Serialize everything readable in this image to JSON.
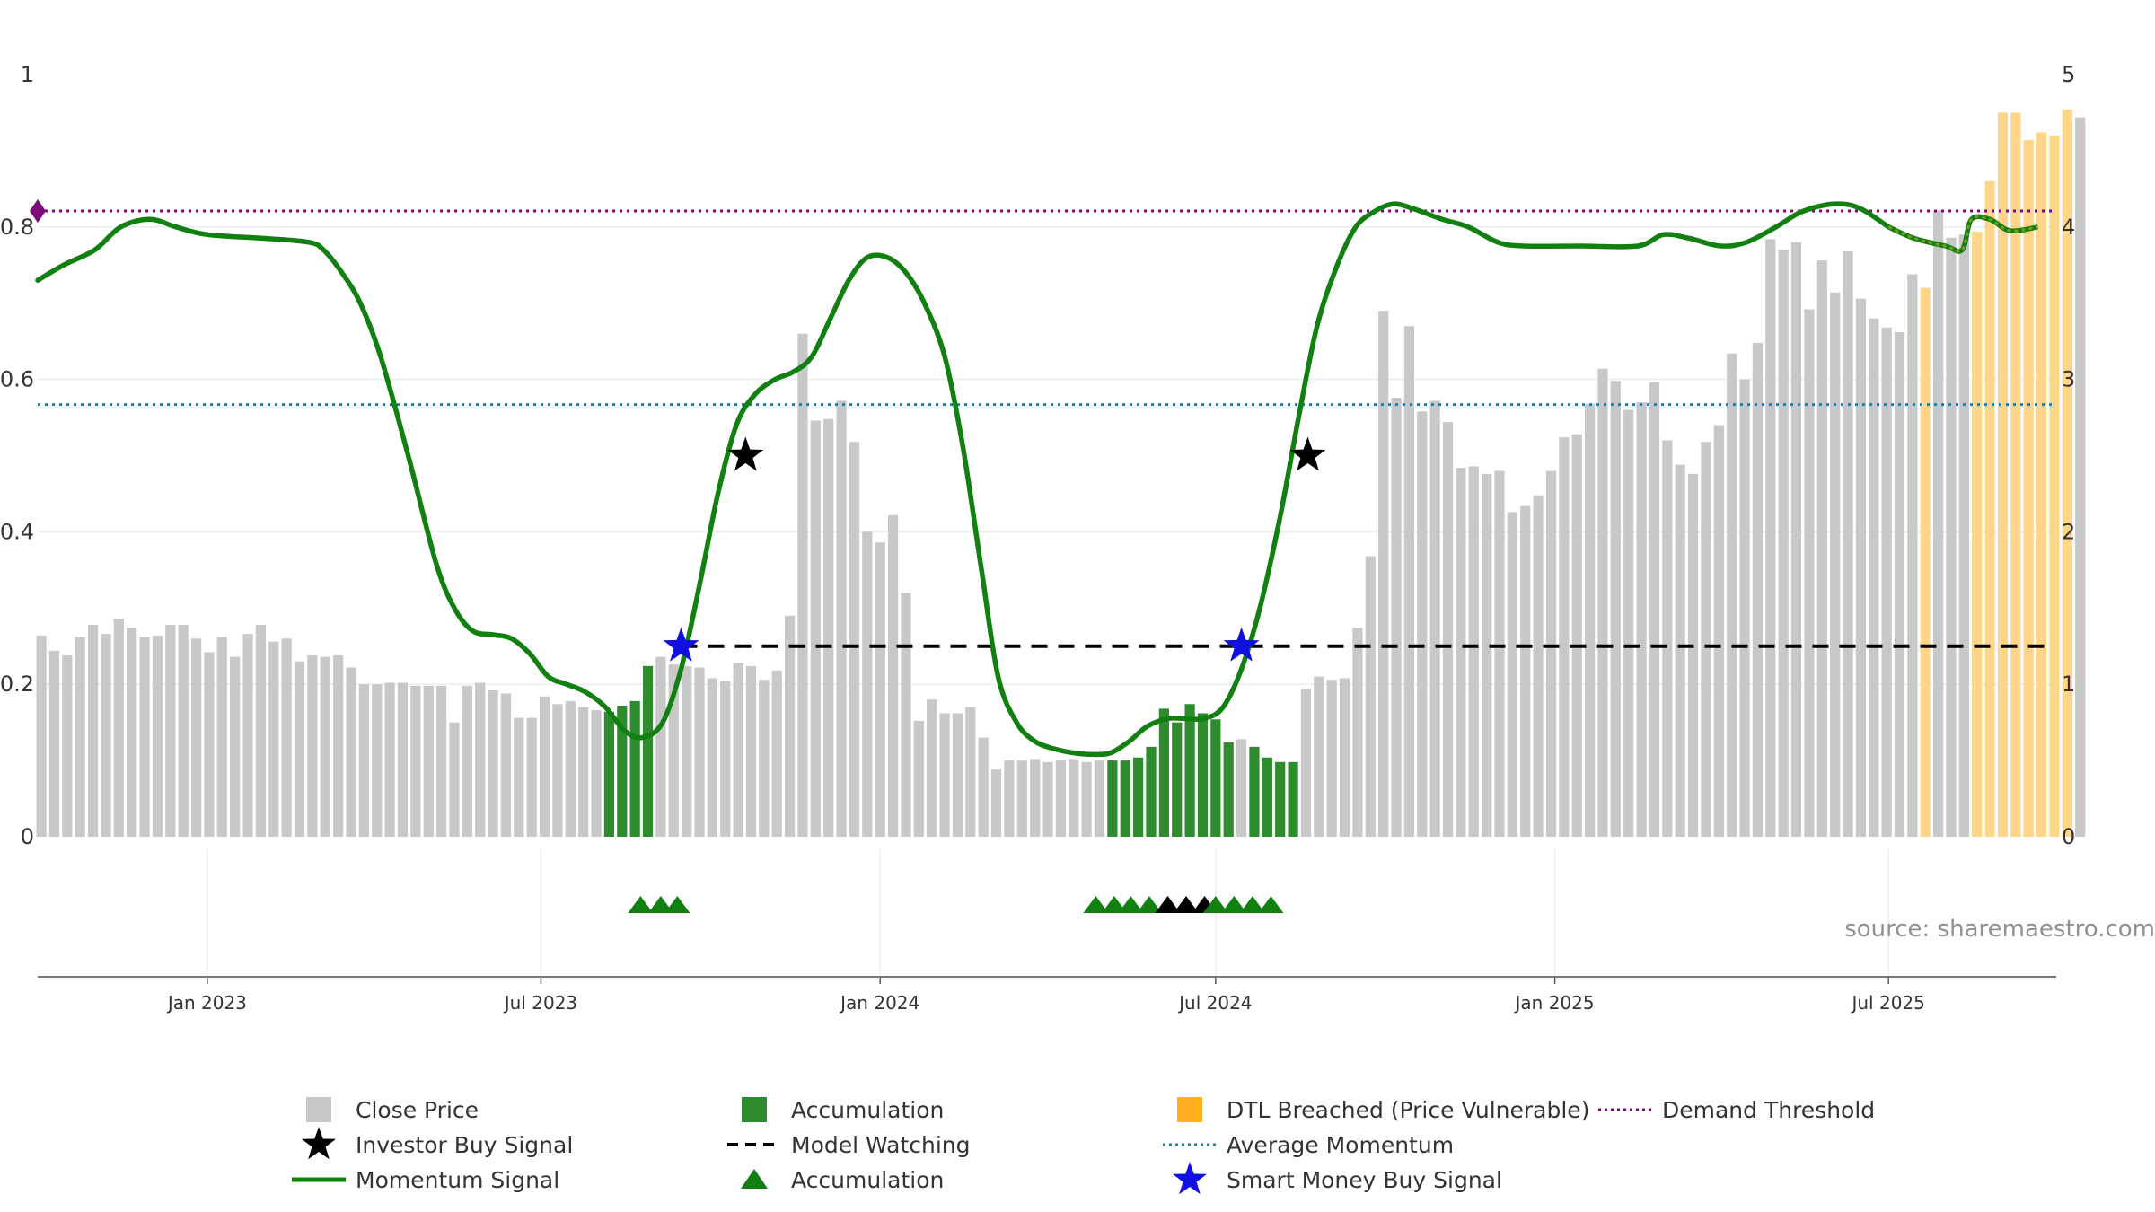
{
  "chart_data": {
    "type": "bar",
    "title": "",
    "source": "source: sharemaestro.com",
    "x_axis": {
      "start": "2022-10-01",
      "end": "2025-09-30",
      "ticks": [
        {
          "date": "2023-01-01",
          "label": "Jan 2023"
        },
        {
          "date": "2023-07-01",
          "label": "Jul 2023"
        },
        {
          "date": "2024-01-01",
          "label": "Jan 2024"
        },
        {
          "date": "2024-07-01",
          "label": "Jul 2024"
        },
        {
          "date": "2025-01-01",
          "label": "Jan 2025"
        },
        {
          "date": "2025-07-01",
          "label": "Jul 2025"
        }
      ]
    },
    "y_left": {
      "min": 0,
      "max": 1,
      "ticks": [
        0,
        0.2,
        0.4,
        0.6,
        0.8,
        1
      ]
    },
    "y_right": {
      "min": 0,
      "max": 5,
      "ticks": [
        0,
        1,
        2,
        3,
        4,
        5
      ]
    },
    "close_price": {
      "start": "2022-10-03",
      "interval_days": 7,
      "values": [
        1.32,
        1.22,
        1.19,
        1.31,
        1.39,
        1.33,
        1.43,
        1.37,
        1.31,
        1.32,
        1.39,
        1.39,
        1.3,
        1.21,
        1.31,
        1.18,
        1.33,
        1.39,
        1.28,
        1.3,
        1.15,
        1.19,
        1.18,
        1.19,
        1.11,
        1.0,
        1.0,
        1.01,
        1.01,
        0.99,
        0.99,
        0.99,
        0.75,
        0.99,
        1.01,
        0.96,
        0.94,
        0.78,
        0.78,
        0.92,
        0.87,
        0.89,
        0.85,
        0.83,
        0.82,
        0.86,
        0.89,
        1.12,
        1.18,
        1.13,
        1.12,
        1.11,
        1.04,
        1.02,
        1.14,
        1.12,
        1.03,
        1.09,
        1.45,
        3.3,
        2.73,
        2.74,
        2.86,
        2.59,
        2.0,
        1.93,
        2.11,
        1.6,
        0.76,
        0.9,
        0.81,
        0.81,
        0.85,
        0.65,
        0.44,
        0.5,
        0.5,
        0.51,
        0.49,
        0.5,
        0.51,
        0.49,
        0.5,
        0.5,
        0.5,
        0.52,
        0.59,
        0.84,
        0.75,
        0.87,
        0.81,
        0.77,
        0.62,
        0.64,
        0.59,
        0.52,
        0.49,
        0.49,
        0.97,
        1.05,
        1.03,
        1.04,
        1.37,
        1.84,
        3.45,
        2.88,
        3.35,
        2.79,
        2.86,
        2.72,
        2.42,
        2.43,
        2.38,
        2.4,
        2.13,
        2.17,
        2.24,
        2.4,
        2.62,
        2.64,
        2.84,
        3.07,
        2.99,
        2.8,
        2.85,
        2.98,
        2.6,
        2.44,
        2.38,
        2.59,
        2.7,
        3.17,
        3.0,
        3.24,
        3.92,
        3.85,
        3.9,
        3.46,
        3.78,
        3.57,
        3.84,
        3.53,
        3.4,
        3.34,
        3.31,
        3.69,
        3.6,
        4.11,
        3.93,
        3.95,
        3.97,
        4.3,
        4.75,
        4.75,
        4.57,
        4.62,
        4.6,
        4.77,
        4.72
      ],
      "accumulation_index_ranges": [
        [
          44,
          47
        ],
        [
          83,
          92
        ],
        [
          94,
          97
        ]
      ],
      "dtl_breached_index_ranges": [
        [
          146,
          146
        ],
        [
          150,
          157
        ]
      ]
    },
    "momentum_signal": {
      "points": [
        [
          "2022-10-01",
          0.73
        ],
        [
          "2022-10-15",
          0.75
        ],
        [
          "2022-11-01",
          0.77
        ],
        [
          "2022-11-15",
          0.8
        ],
        [
          "2022-12-01",
          0.81
        ],
        [
          "2022-12-15",
          0.8
        ],
        [
          "2023-01-01",
          0.79
        ],
        [
          "2023-02-01",
          0.785
        ],
        [
          "2023-02-25",
          0.78
        ],
        [
          "2023-03-05",
          0.77
        ],
        [
          "2023-03-15",
          0.74
        ],
        [
          "2023-03-25",
          0.7
        ],
        [
          "2023-04-05",
          0.63
        ],
        [
          "2023-04-20",
          0.5
        ],
        [
          "2023-05-05",
          0.36
        ],
        [
          "2023-05-15",
          0.3
        ],
        [
          "2023-05-25",
          0.27
        ],
        [
          "2023-06-05",
          0.265
        ],
        [
          "2023-06-15",
          0.26
        ],
        [
          "2023-06-25",
          0.24
        ],
        [
          "2023-07-05",
          0.21
        ],
        [
          "2023-07-15",
          0.2
        ],
        [
          "2023-07-25",
          0.19
        ],
        [
          "2023-08-05",
          0.17
        ],
        [
          "2023-08-15",
          0.14
        ],
        [
          "2023-08-25",
          0.13
        ],
        [
          "2023-09-05",
          0.15
        ],
        [
          "2023-09-15",
          0.22
        ],
        [
          "2023-09-25",
          0.33
        ],
        [
          "2023-10-05",
          0.45
        ],
        [
          "2023-10-15",
          0.54
        ],
        [
          "2023-10-25",
          0.58
        ],
        [
          "2023-11-05",
          0.6
        ],
        [
          "2023-11-15",
          0.61
        ],
        [
          "2023-11-25",
          0.63
        ],
        [
          "2023-12-05",
          0.68
        ],
        [
          "2023-12-15",
          0.73
        ],
        [
          "2023-12-25",
          0.76
        ],
        [
          "2024-01-05",
          0.76
        ],
        [
          "2024-01-15",
          0.74
        ],
        [
          "2024-01-25",
          0.7
        ],
        [
          "2024-02-05",
          0.63
        ],
        [
          "2024-02-15",
          0.51
        ],
        [
          "2024-02-25",
          0.35
        ],
        [
          "2024-03-05",
          0.21
        ],
        [
          "2024-03-15",
          0.15
        ],
        [
          "2024-03-25",
          0.125
        ],
        [
          "2024-04-05",
          0.115
        ],
        [
          "2024-04-15",
          0.11
        ],
        [
          "2024-04-25",
          0.108
        ],
        [
          "2024-05-05",
          0.11
        ],
        [
          "2024-05-15",
          0.125
        ],
        [
          "2024-05-25",
          0.145
        ],
        [
          "2024-06-05",
          0.155
        ],
        [
          "2024-06-15",
          0.155
        ],
        [
          "2024-06-25",
          0.155
        ],
        [
          "2024-07-05",
          0.17
        ],
        [
          "2024-07-15",
          0.22
        ],
        [
          "2024-07-25",
          0.3
        ],
        [
          "2024-08-05",
          0.42
        ],
        [
          "2024-08-15",
          0.55
        ],
        [
          "2024-08-25",
          0.67
        ],
        [
          "2024-09-05",
          0.75
        ],
        [
          "2024-09-15",
          0.8
        ],
        [
          "2024-09-25",
          0.82
        ],
        [
          "2024-10-05",
          0.83
        ],
        [
          "2024-10-15",
          0.825
        ],
        [
          "2024-11-01",
          0.81
        ],
        [
          "2024-11-15",
          0.8
        ],
        [
          "2024-12-01",
          0.78
        ],
        [
          "2024-12-15",
          0.775
        ],
        [
          "2025-01-15",
          0.775
        ],
        [
          "2025-02-15",
          0.775
        ],
        [
          "2025-03-01",
          0.79
        ],
        [
          "2025-03-15",
          0.785
        ],
        [
          "2025-04-01",
          0.775
        ],
        [
          "2025-04-15",
          0.78
        ],
        [
          "2025-05-01",
          0.8
        ],
        [
          "2025-05-15",
          0.82
        ],
        [
          "2025-06-01",
          0.83
        ],
        [
          "2025-06-15",
          0.825
        ],
        [
          "2025-07-01",
          0.8
        ],
        [
          "2025-07-15",
          0.785
        ],
        [
          "2025-08-01",
          0.775
        ],
        [
          "2025-08-10",
          0.77
        ],
        [
          "2025-08-15",
          0.81
        ],
        [
          "2025-08-25",
          0.81
        ],
        [
          "2025-09-05",
          0.795
        ],
        [
          "2025-09-20",
          0.8
        ]
      ],
      "dashed_from": "2025-07-01"
    },
    "average_momentum": 0.567,
    "demand_threshold": 0.821,
    "model_watching": {
      "from": "2023-09-15",
      "to": "2025-09-25",
      "value": 0.25
    },
    "smart_money_buy_signals": [
      {
        "date": "2023-09-15",
        "value": 0.25
      },
      {
        "date": "2024-07-15",
        "value": 0.25
      }
    ],
    "investor_buy_signals": [
      {
        "date": "2023-10-20",
        "value": 0.5
      },
      {
        "date": "2024-08-20",
        "value": 0.5
      }
    ],
    "accumulation_markers": [
      {
        "date": "2023-08-24",
        "color": "#118011"
      },
      {
        "date": "2023-09-04",
        "color": "#118011"
      },
      {
        "date": "2023-09-13",
        "color": "#118011"
      },
      {
        "date": "2024-04-27",
        "color": "#118011"
      },
      {
        "date": "2024-05-07",
        "color": "#118011"
      },
      {
        "date": "2024-05-16",
        "color": "#118011"
      },
      {
        "date": "2024-05-26",
        "color": "#118011"
      },
      {
        "date": "2024-06-05",
        "color": "#000000"
      },
      {
        "date": "2024-06-15",
        "color": "#000000"
      },
      {
        "date": "2024-06-25",
        "color": "#000000"
      },
      {
        "date": "2024-07-01",
        "color": "#118011"
      },
      {
        "date": "2024-07-11",
        "color": "#118011"
      },
      {
        "date": "2024-07-21",
        "color": "#118011"
      },
      {
        "date": "2024-07-31",
        "color": "#118011"
      }
    ],
    "colors": {
      "close": "#c8c8c8",
      "accumulation": "#2e8b2e",
      "dtl": "#ffd58a",
      "momentum": "#118011",
      "momentum_dashed": "#7a9a1a",
      "average": "#2a7ba0",
      "demand": "#7a0c7a",
      "model_watching": "#000000",
      "smart_money": "#1010e0",
      "investor": "#000000",
      "grid": "#e6eef0"
    },
    "legend": [
      {
        "label": "Close Price",
        "marker": "square",
        "color": "#c8c8c8"
      },
      {
        "label": "Investor Buy Signal",
        "marker": "star",
        "color": "#000000"
      },
      {
        "label": "Momentum Signal",
        "marker": "line",
        "color": "#118011"
      },
      {
        "label": "Accumulation",
        "marker": "square",
        "color": "#2e8b2e"
      },
      {
        "label": "Model Watching",
        "marker": "dash",
        "color": "#000000"
      },
      {
        "label": "Accumulation",
        "marker": "triangle",
        "color": "#118011"
      },
      {
        "label": "DTL Breached (Price Vulnerable)",
        "marker": "square",
        "color": "#ffb020"
      },
      {
        "label": "Average Momentum",
        "marker": "dot",
        "color": "#2a7ba0"
      },
      {
        "label": "Smart Money Buy Signal",
        "marker": "star",
        "color": "#1010e0"
      },
      {
        "label": "Demand Threshold",
        "marker": "dot",
        "color": "#7a0c7a"
      }
    ]
  }
}
